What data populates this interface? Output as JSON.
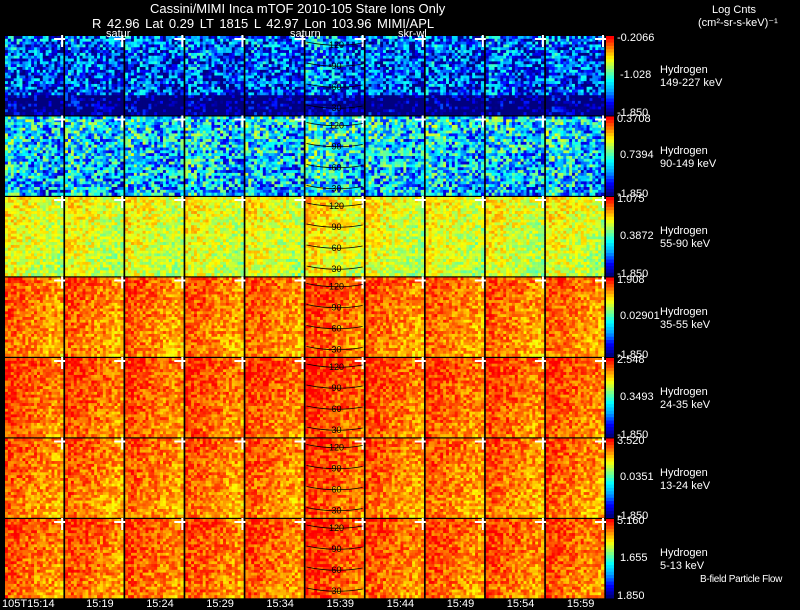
{
  "header": {
    "title": "Cassini/MIMI Inca mTOF  2010-105   Stare   Ions Only",
    "subtitle": "R      42.96 Lat 0.29 LT 1815 L       42.97 Lon       103.96  MIMI/APL",
    "marker_labels": [
      "satur",
      "saturn",
      "skr-wl"
    ],
    "unit_line1": "Log Cnts",
    "unit_line2": "(cm²-sr-s-keV)⁻¹"
  },
  "footer": {
    "bfield_label": "B-field Particle Flow"
  },
  "chart_data": {
    "type": "heatmap",
    "title": "Cassini/MIMI Inca mTOF  2010-105   Stare   Ions Only",
    "x_ticks": [
      "105T15:14",
      "15:19",
      "15:24",
      "15:29",
      "15:34",
      "15:39",
      "15:44",
      "15:49",
      "15:54",
      "15:59"
    ],
    "pitch_angle_ticks": [
      "120",
      "90",
      "60",
      "30"
    ],
    "colorscale": [
      "#000080",
      "#0000ff",
      "#00a0ff",
      "#00ffff",
      "#80ff80",
      "#ffff00",
      "#ff8000",
      "#ff0000"
    ],
    "rows": [
      {
        "species": "Hydrogen",
        "energy": "149-227 keV",
        "cbar_max": "-0.2066",
        "cbar_mid": "-1.028",
        "cbar_min": "-1.850",
        "level": 0.18
      },
      {
        "species": "Hydrogen",
        "energy": "90-149 keV",
        "cbar_max": "0.3708",
        "cbar_mid": "0.7394",
        "cbar_min": "-1.850",
        "level": 0.35
      },
      {
        "species": "Hydrogen",
        "energy": "55-90 keV",
        "cbar_max": "1.075",
        "cbar_mid": "0.3872",
        "cbar_min": "-1.850",
        "level": 0.66
      },
      {
        "species": "Hydrogen",
        "energy": "35-55 keV",
        "cbar_max": "1.908",
        "cbar_mid": "0.02901",
        "cbar_min": "-1.850",
        "level": 0.84
      },
      {
        "species": "Hydrogen",
        "energy": "24-35 keV",
        "cbar_max": "2.548",
        "cbar_mid": "0.3493",
        "cbar_min": "-1.850",
        "level": 0.87
      },
      {
        "species": "Hydrogen",
        "energy": "13-24 keV",
        "cbar_max": "3.520",
        "cbar_mid": "0.0351",
        "cbar_min": "-1.850",
        "level": 0.84
      },
      {
        "species": "Hydrogen",
        "energy": "5-13 keV",
        "cbar_max": "5.160",
        "cbar_mid": "1.655",
        "cbar_min": "1.850",
        "level": 0.86
      }
    ]
  }
}
